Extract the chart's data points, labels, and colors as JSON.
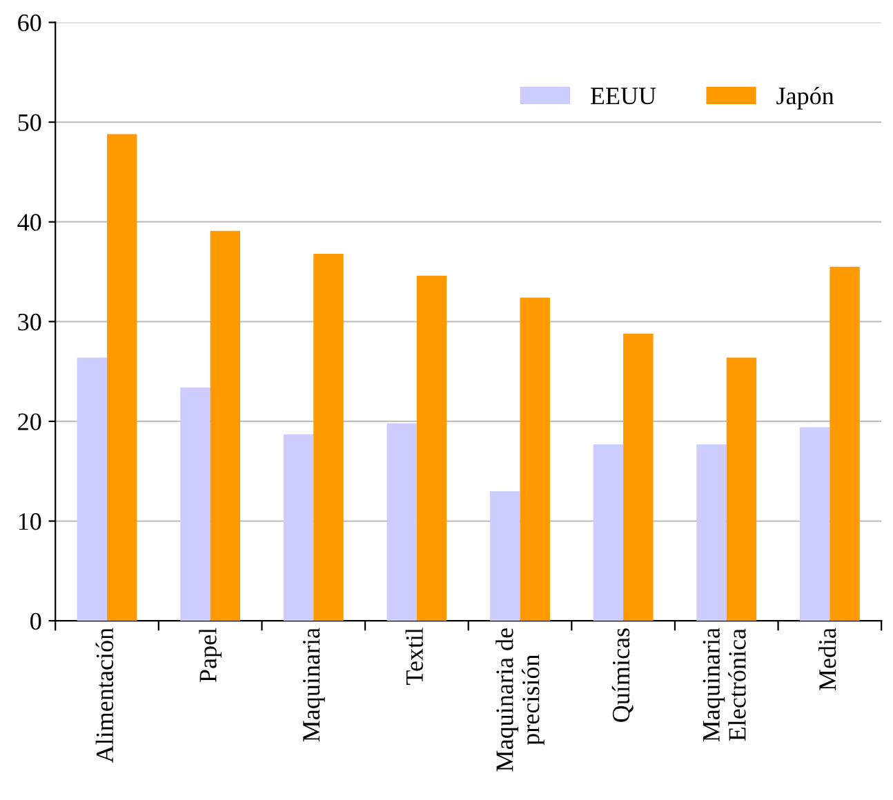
{
  "chart_data": {
    "type": "bar",
    "categories": [
      "Alimentación",
      "Papel",
      "Maquinaria",
      "Textil",
      "Maquinaria de\nprecisión",
      "Químicas",
      "Maquinaria\nElectrónica",
      "Media"
    ],
    "series": [
      {
        "name": "EEUU",
        "color": "#ccccff",
        "values": [
          26.4,
          23.4,
          18.7,
          19.8,
          13.0,
          17.7,
          17.7,
          19.4
        ]
      },
      {
        "name": "Japón",
        "color": "#ff9900",
        "values": [
          48.8,
          39.1,
          36.8,
          34.6,
          32.4,
          28.8,
          26.4,
          35.5
        ]
      }
    ],
    "ylim": [
      0,
      60
    ],
    "yticks": [
      0,
      10,
      20,
      30,
      40,
      50,
      60
    ],
    "grid": "y",
    "legend": "top right"
  }
}
